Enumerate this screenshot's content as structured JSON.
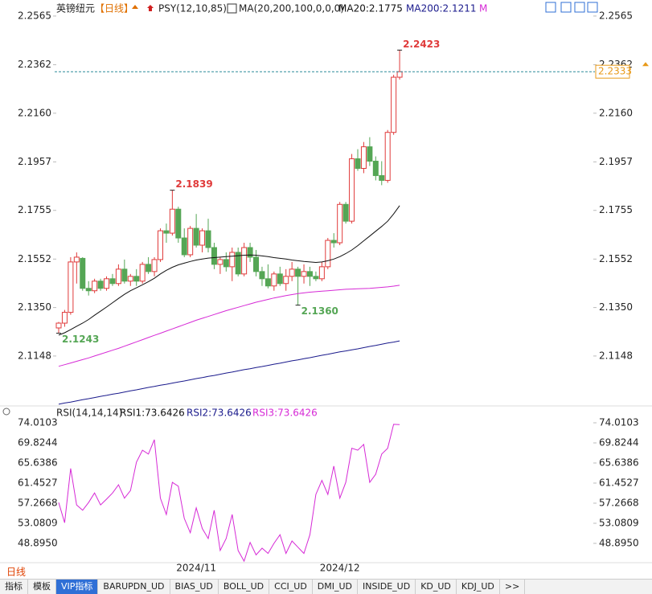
{
  "chart_data": [
    {
      "type": "candlestick",
      "title": "英镑纽元",
      "subtitle": "【日线】",
      "indicator": "PSY(12,10,85)",
      "ma_label": "MA(20,200,100,0,0,0)",
      "categories": [
        null,
        null,
        null,
        null,
        null,
        null,
        null,
        null,
        null,
        null,
        null,
        null,
        null,
        null,
        null,
        null,
        null,
        null,
        null,
        null,
        null,
        null,
        null,
        "2024/11",
        null,
        null,
        null,
        null,
        null,
        null,
        null,
        null,
        null,
        null,
        null,
        null,
        null,
        null,
        null,
        null,
        null,
        null,
        null,
        null,
        null,
        null,
        null,
        "2024/12",
        null,
        null,
        null,
        null,
        null,
        null,
        null,
        null,
        null,
        null
      ],
      "open": [
        2.1265,
        2.1285,
        2.133,
        2.154,
        2.1555,
        2.143,
        2.142,
        2.146,
        2.143,
        2.147,
        2.145,
        2.151,
        2.146,
        2.148,
        2.146,
        2.153,
        2.15,
        2.155,
        2.167,
        2.166,
        2.176,
        2.164,
        2.157,
        2.168,
        2.161,
        2.167,
        2.16,
        2.153,
        2.155,
        2.152,
        2.158,
        2.149,
        2.16,
        2.156,
        2.15,
        2.147,
        2.144,
        2.149,
        2.145,
        2.148,
        2.151,
        2.148,
        2.15,
        2.148,
        2.147,
        2.152,
        2.163,
        2.162,
        2.178,
        2.171,
        2.197,
        2.193,
        2.202,
        2.196,
        2.19,
        2.188,
        2.208,
        2.231
      ],
      "high": [
        2.129,
        2.134,
        2.156,
        2.158,
        2.156,
        2.146,
        2.147,
        2.147,
        2.148,
        2.149,
        2.153,
        2.155,
        2.149,
        2.151,
        2.154,
        2.156,
        2.156,
        2.168,
        2.17,
        2.1839,
        2.177,
        2.168,
        2.169,
        2.174,
        2.168,
        2.172,
        2.162,
        2.156,
        2.158,
        2.16,
        2.16,
        2.162,
        2.162,
        2.159,
        2.152,
        2.153,
        2.15,
        2.152,
        2.151,
        2.154,
        2.152,
        2.153,
        2.152,
        2.15,
        2.154,
        2.164,
        2.166,
        2.179,
        2.179,
        2.199,
        2.201,
        2.204,
        2.206,
        2.198,
        2.196,
        2.209,
        2.232,
        2.2423
      ],
      "low": [
        2.1243,
        2.127,
        2.132,
        2.145,
        2.142,
        2.14,
        2.141,
        2.142,
        2.142,
        2.144,
        2.144,
        2.145,
        2.144,
        2.144,
        2.145,
        2.149,
        2.148,
        2.154,
        2.162,
        2.165,
        2.162,
        2.156,
        2.156,
        2.16,
        2.158,
        2.158,
        2.151,
        2.149,
        2.15,
        2.146,
        2.148,
        2.148,
        2.154,
        2.148,
        2.144,
        2.143,
        2.142,
        2.144,
        2.142,
        2.146,
        2.136,
        2.145,
        2.144,
        2.146,
        2.146,
        2.151,
        2.16,
        2.161,
        2.17,
        2.17,
        2.192,
        2.191,
        2.194,
        2.188,
        2.186,
        2.187,
        2.207,
        2.23
      ],
      "close": [
        2.1285,
        2.133,
        2.154,
        2.156,
        2.143,
        2.142,
        2.146,
        2.143,
        2.147,
        2.145,
        2.151,
        2.146,
        2.148,
        2.146,
        2.153,
        2.15,
        2.155,
        2.167,
        2.166,
        2.176,
        2.164,
        2.157,
        2.168,
        2.161,
        2.167,
        2.16,
        2.153,
        2.155,
        2.152,
        2.158,
        2.149,
        2.16,
        2.156,
        2.15,
        2.147,
        2.144,
        2.149,
        2.145,
        2.148,
        2.151,
        2.148,
        2.15,
        2.148,
        2.147,
        2.152,
        2.163,
        2.162,
        2.178,
        2.171,
        2.197,
        2.193,
        2.202,
        2.196,
        2.19,
        2.188,
        2.208,
        2.231,
        2.2333
      ],
      "up_color": "#e03a3a",
      "down_color": "#55a655",
      "series": [
        {
          "name": "MA20:2.1775",
          "color": "#111111",
          "values": [
            2.1235,
            2.1245,
            2.1258,
            2.1272,
            2.1285,
            2.13,
            2.1318,
            2.1335,
            2.1352,
            2.137,
            2.1388,
            2.1405,
            2.142,
            2.1432,
            2.1445,
            2.1458,
            2.1472,
            2.149,
            2.1505,
            2.1518,
            2.1528,
            2.1535,
            2.1542,
            2.1548,
            2.1552,
            2.1556,
            2.1558,
            2.156,
            2.1562,
            2.1564,
            2.1566,
            2.1568,
            2.1569,
            2.1568,
            2.1565,
            2.1562,
            2.1558,
            2.1555,
            2.1552,
            2.1548,
            2.1545,
            2.1542,
            2.154,
            2.1538,
            2.154,
            2.1545,
            2.1552,
            2.1562,
            2.1575,
            2.159,
            2.1608,
            2.1628,
            2.1648,
            2.1668,
            2.1688,
            2.171,
            2.174,
            2.1775
          ]
        },
        {
          "name": "MA200:2.1211",
          "color": "#1a1a8c",
          "values": [
            2.0947,
            2.0952,
            2.0956,
            2.0961,
            2.0966,
            2.097,
            2.0975,
            2.098,
            2.0984,
            2.0989,
            2.0993,
            2.0998,
            2.1003,
            2.1007,
            2.1012,
            2.1017,
            2.1021,
            2.1026,
            2.103,
            2.1035,
            2.104,
            2.1044,
            2.1049,
            2.1054,
            2.1058,
            2.1063,
            2.1067,
            2.1072,
            2.1077,
            2.1081,
            2.1086,
            2.1091,
            2.1095,
            2.11,
            2.1104,
            2.1109,
            2.1114,
            2.1118,
            2.1123,
            2.1128,
            2.1132,
            2.1137,
            2.1141,
            2.1146,
            2.1151,
            2.1155,
            2.116,
            2.1165,
            2.1169,
            2.1174,
            2.1178,
            2.1183,
            2.1188,
            2.1192,
            2.1197,
            2.1202,
            2.1206,
            2.1211
          ]
        },
        {
          "name": "M",
          "color": "#d62ad6",
          "values": [
            2.1105,
            2.1112,
            2.1119,
            2.1126,
            2.1133,
            2.114,
            2.1148,
            2.1156,
            2.1164,
            2.1172,
            2.118,
            2.1189,
            2.1198,
            2.1207,
            2.1216,
            2.1225,
            2.1234,
            2.1243,
            2.1252,
            2.1261,
            2.127,
            2.1279,
            2.1288,
            2.1297,
            2.1305,
            2.1313,
            2.1321,
            2.1329,
            2.1337,
            2.1344,
            2.1351,
            2.1358,
            2.1365,
            2.1372,
            2.1378,
            2.1384,
            2.139,
            2.1395,
            2.14,
            2.1404,
            2.1408,
            2.1411,
            2.1414,
            2.1416,
            2.1418,
            2.142,
            2.1422,
            2.1424,
            2.1426,
            2.1427,
            2.1428,
            2.1429,
            2.143,
            2.1432,
            2.1434,
            2.1436,
            2.1439,
            2.1443
          ]
        }
      ],
      "annotations": [
        2.2423,
        2.1839,
        {
          "value": 2.136,
          "label": "2.1360"
        },
        2.1243
      ],
      "last_price": 2.2333,
      "last_price_color": "#e89a1a",
      "ylim": [
        2.094,
        2.2605
      ],
      "yticks": [
        2.2565,
        2.2362,
        {
          "value": 2.216,
          "label": "2.2160"
        },
        2.1957,
        2.1755,
        2.1552,
        {
          "value": 2.135,
          "label": "2.1350"
        },
        2.1148
      ]
    },
    {
      "type": "line",
      "indicator": "RSI(14,14,14)",
      "legend": [
        {
          "name": "RSI1:73.6426",
          "color": "#111111"
        },
        {
          "name": "RSI2:73.6426",
          "color": "#1a1a8c"
        }
      ],
      "series": [
        {
          "name": "RSI3:73.6426",
          "color": "#d62ad6",
          "values": [
            57.4,
            53.2,
            64.5,
            56.9,
            55.8,
            57.4,
            59.4,
            56.9,
            58.1,
            59.4,
            61.1,
            58.3,
            59.9,
            65.8,
            68.3,
            67.5,
            70.5,
            58.3,
            54.9,
            61.6,
            60.8,
            54.1,
            51.1,
            56.3,
            52.0,
            49.9,
            55.8,
            47.4,
            49.9,
            54.9,
            47.4,
            45.2,
            49.1,
            46.5,
            47.9,
            46.8,
            48.9,
            50.7,
            46.8,
            49.4,
            48.1,
            46.8,
            50.7,
            59.1,
            62.0,
            59.1,
            65.0,
            58.3,
            61.6,
            68.7,
            68.3,
            69.5,
            61.6,
            63.3,
            67.5,
            68.7,
            73.7,
            73.6426
          ]
        }
      ],
      "ylim": [
        44.88,
        75.35
      ],
      "yticks": [
        74.0103,
        69.8244,
        65.6386,
        61.4527,
        57.2668,
        53.0809,
        {
          "value": 48.895,
          "label": "48.8950"
        }
      ]
    }
  ],
  "period_label": "日线",
  "tabs": [
    "指标",
    "模板",
    "VIP指标",
    "BARUPDN_UD",
    "BIAS_UD",
    "BOLL_UD",
    "CCI_UD",
    "DMI_UD",
    "INSIDE_UD",
    "KD_UD",
    "KDJ_UD",
    ">>"
  ]
}
